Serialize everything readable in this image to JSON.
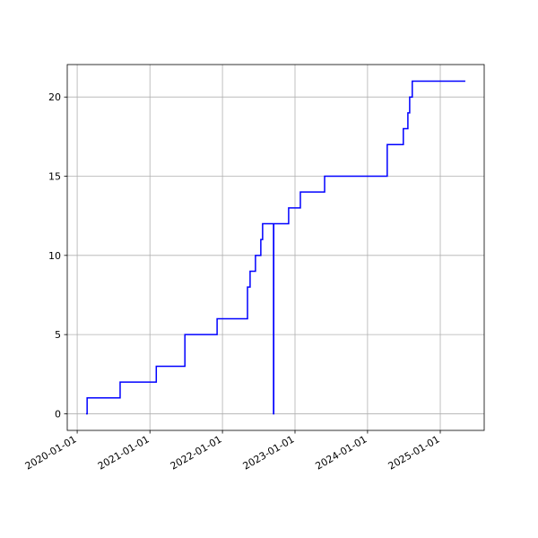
{
  "chart_data": {
    "type": "line",
    "drawstyle": "steps-post",
    "color": "#0000ff",
    "grid": true,
    "x": [
      "2020-02-15",
      "2020-02-20",
      "2020-08-04",
      "2021-02-02",
      "2021-06-26",
      "2021-12-05",
      "2022-05-07",
      "2022-05-20",
      "2022-06-16",
      "2022-07-13",
      "2022-07-22",
      "2022-09-15",
      "2022-09-16",
      "2022-11-30",
      "2023-01-28",
      "2023-05-30",
      "2024-04-09",
      "2024-06-29",
      "2024-07-22",
      "2024-07-31",
      "2024-08-13",
      "2025-05-07"
    ],
    "values": [
      0,
      1,
      2,
      3,
      5,
      6,
      8,
      9,
      10,
      11,
      12,
      0,
      12,
      13,
      14,
      15,
      17,
      18,
      19,
      20,
      21,
      21
    ],
    "xlim": [
      "2019-11-12",
      "2025-08-10"
    ],
    "xticks": [
      "2020-01-01",
      "2021-01-01",
      "2022-01-01",
      "2023-01-01",
      "2024-01-01",
      "2025-01-01"
    ],
    "ylim": [
      -1.05,
      22.05
    ],
    "yticks": [
      0,
      5,
      10,
      15,
      20
    ]
  }
}
